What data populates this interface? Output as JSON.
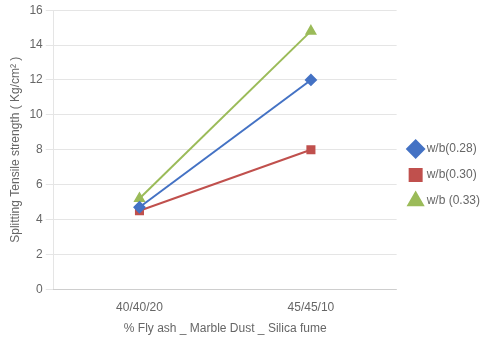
{
  "chart_data": {
    "type": "line",
    "categories": [
      "40/40/20",
      "45/45/10"
    ],
    "series": [
      {
        "name": "w/b(0.28)",
        "color": "#4472C4",
        "marker": "diamond",
        "values": [
          4.7,
          12.0
        ]
      },
      {
        "name": "w/b(0.30)",
        "color": "#C0504D",
        "marker": "square",
        "values": [
          4.5,
          8.0
        ]
      },
      {
        "name": "w/b (0.33)",
        "color": "#9BBB59",
        "marker": "triangle",
        "values": [
          5.2,
          14.8
        ]
      }
    ],
    "xlabel": "% Fly ash _ Marble Dust _ Silica fume",
    "ylabel": "Splitting Tensile strength ( Kg/cm² )",
    "ylim": [
      0,
      16
    ],
    "yticks": [
      0,
      2,
      4,
      6,
      8,
      10,
      12,
      14,
      16
    ],
    "grid": "y",
    "legend": "right"
  }
}
